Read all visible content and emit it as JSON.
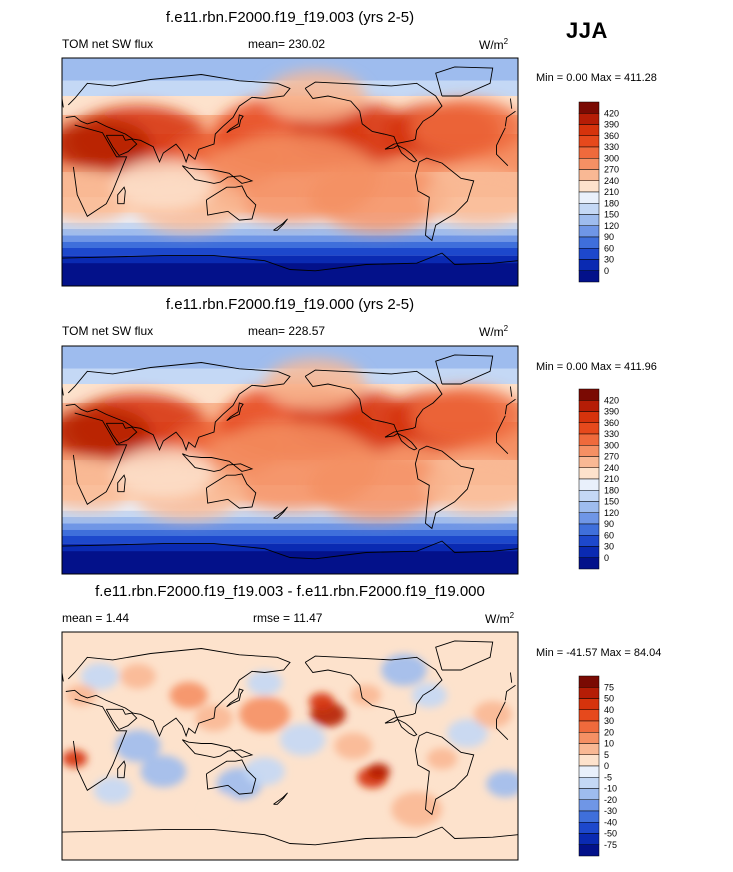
{
  "season": "JJA",
  "panels": [
    {
      "title": "f.e11.rbn.F2000.f19_f19.003 (yrs 2-5)",
      "left_label": "TOM net SW flux",
      "center_label": "mean= 230.02",
      "units": "W/m",
      "units_sup": "2",
      "minmax": "Min =   0.00 Max = 411.28"
    },
    {
      "title": "f.e11.rbn.F2000.f19_f19.000 (yrs 2-5)",
      "left_label": "TOM net SW flux",
      "center_label": "mean= 228.57",
      "units": "W/m",
      "units_sup": "2",
      "minmax": "Min =   0.00 Max = 411.96"
    },
    {
      "title": "f.e11.rbn.F2000.f19_f19.003 - f.e11.rbn.F2000.f19_f19.000",
      "left_label": "mean =   1.44",
      "center_label": "rmse =  11.47",
      "units": "W/m",
      "units_sup": "2",
      "minmax": "Min = -41.57 Max =  84.04"
    }
  ],
  "chart_data": [
    {
      "type": "heatmap",
      "title": "f.e11.rbn.F2000.f19_f19.003 (yrs 2-5)",
      "variable": "TOM net SW flux",
      "units": "W/m2",
      "mean": 230.02,
      "min": 0.0,
      "max": 411.28,
      "colorbar_levels": [
        420,
        390,
        360,
        330,
        300,
        270,
        240,
        210,
        180,
        150,
        120,
        90,
        60,
        30,
        0
      ],
      "colorbar_colors": [
        "#7a0a03",
        "#b51d06",
        "#d6330c",
        "#e6491c",
        "#ef6a3c",
        "#f59064",
        "#f9b894",
        "#fde2cc",
        "#e9f0fb",
        "#c4d8f5",
        "#9ebcee",
        "#6f96e6",
        "#3f6fdb",
        "#1d48cc",
        "#0a2ab2",
        "#03118a"
      ]
    },
    {
      "type": "heatmap",
      "title": "f.e11.rbn.F2000.f19_f19.000 (yrs 2-5)",
      "variable": "TOM net SW flux",
      "units": "W/m2",
      "mean": 228.57,
      "min": 0.0,
      "max": 411.96,
      "colorbar_levels": [
        420,
        390,
        360,
        330,
        300,
        270,
        240,
        210,
        180,
        150,
        120,
        90,
        60,
        30,
        0
      ],
      "colorbar_colors": [
        "#7a0a03",
        "#b51d06",
        "#d6330c",
        "#e6491c",
        "#ef6a3c",
        "#f59064",
        "#f9b894",
        "#fde2cc",
        "#e9f0fb",
        "#c4d8f5",
        "#9ebcee",
        "#6f96e6",
        "#3f6fdb",
        "#1d48cc",
        "#0a2ab2",
        "#03118a"
      ]
    },
    {
      "type": "heatmap",
      "title": "f.e11.rbn.F2000.f19_f19.003 - f.e11.rbn.F2000.f19_f19.000",
      "variable": "difference",
      "units": "W/m2",
      "mean": 1.44,
      "rmse": 11.47,
      "min": -41.57,
      "max": 84.04,
      "colorbar_levels": [
        75,
        50,
        40,
        30,
        20,
        10,
        5,
        0,
        -5,
        -10,
        -20,
        -30,
        -40,
        -50,
        -75
      ],
      "colorbar_colors": [
        "#7a0a03",
        "#b51d06",
        "#d6330c",
        "#e6491c",
        "#ef6a3c",
        "#f59064",
        "#f9b894",
        "#fde2cc",
        "#e9f0fb",
        "#c4d8f5",
        "#9ebcee",
        "#6f96e6",
        "#3f6fdb",
        "#1d48cc",
        "#0a2ab2",
        "#03118a"
      ]
    }
  ]
}
